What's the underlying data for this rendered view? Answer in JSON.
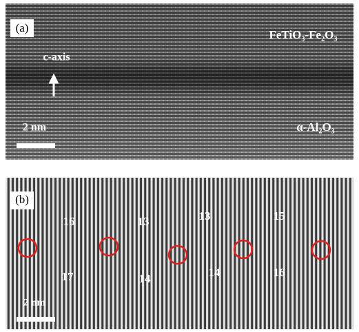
{
  "panel_a": {
    "label": "(a)",
    "film": "FeTiO₃-Fe₂O₃",
    "axis_label": "c-axis",
    "scale_bar": "2 nm",
    "substrate": "α-Al₂O₃"
  },
  "panel_b": {
    "label": "(b)",
    "scale_bar": "2 nm",
    "counts": [
      16,
      13,
      13,
      15,
      17,
      14,
      14,
      16
    ]
  }
}
